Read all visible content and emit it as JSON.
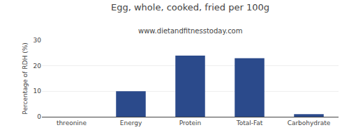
{
  "chart_data": {
    "type": "bar",
    "title": "Egg, whole, cooked, fried per 100g",
    "subtitle": "www.dietandfitnesstoday.com",
    "categories": [
      "threonine",
      "Energy",
      "Protein",
      "Total-Fat",
      "Carbohydrate"
    ],
    "values": [
      0,
      10,
      24,
      23,
      1
    ],
    "color": "#2b4a8b",
    "ylabel": "Percentage of RDH (%)",
    "ylim": [
      0,
      30
    ],
    "yticks": [
      0,
      10,
      20,
      30
    ],
    "grid": true
  }
}
